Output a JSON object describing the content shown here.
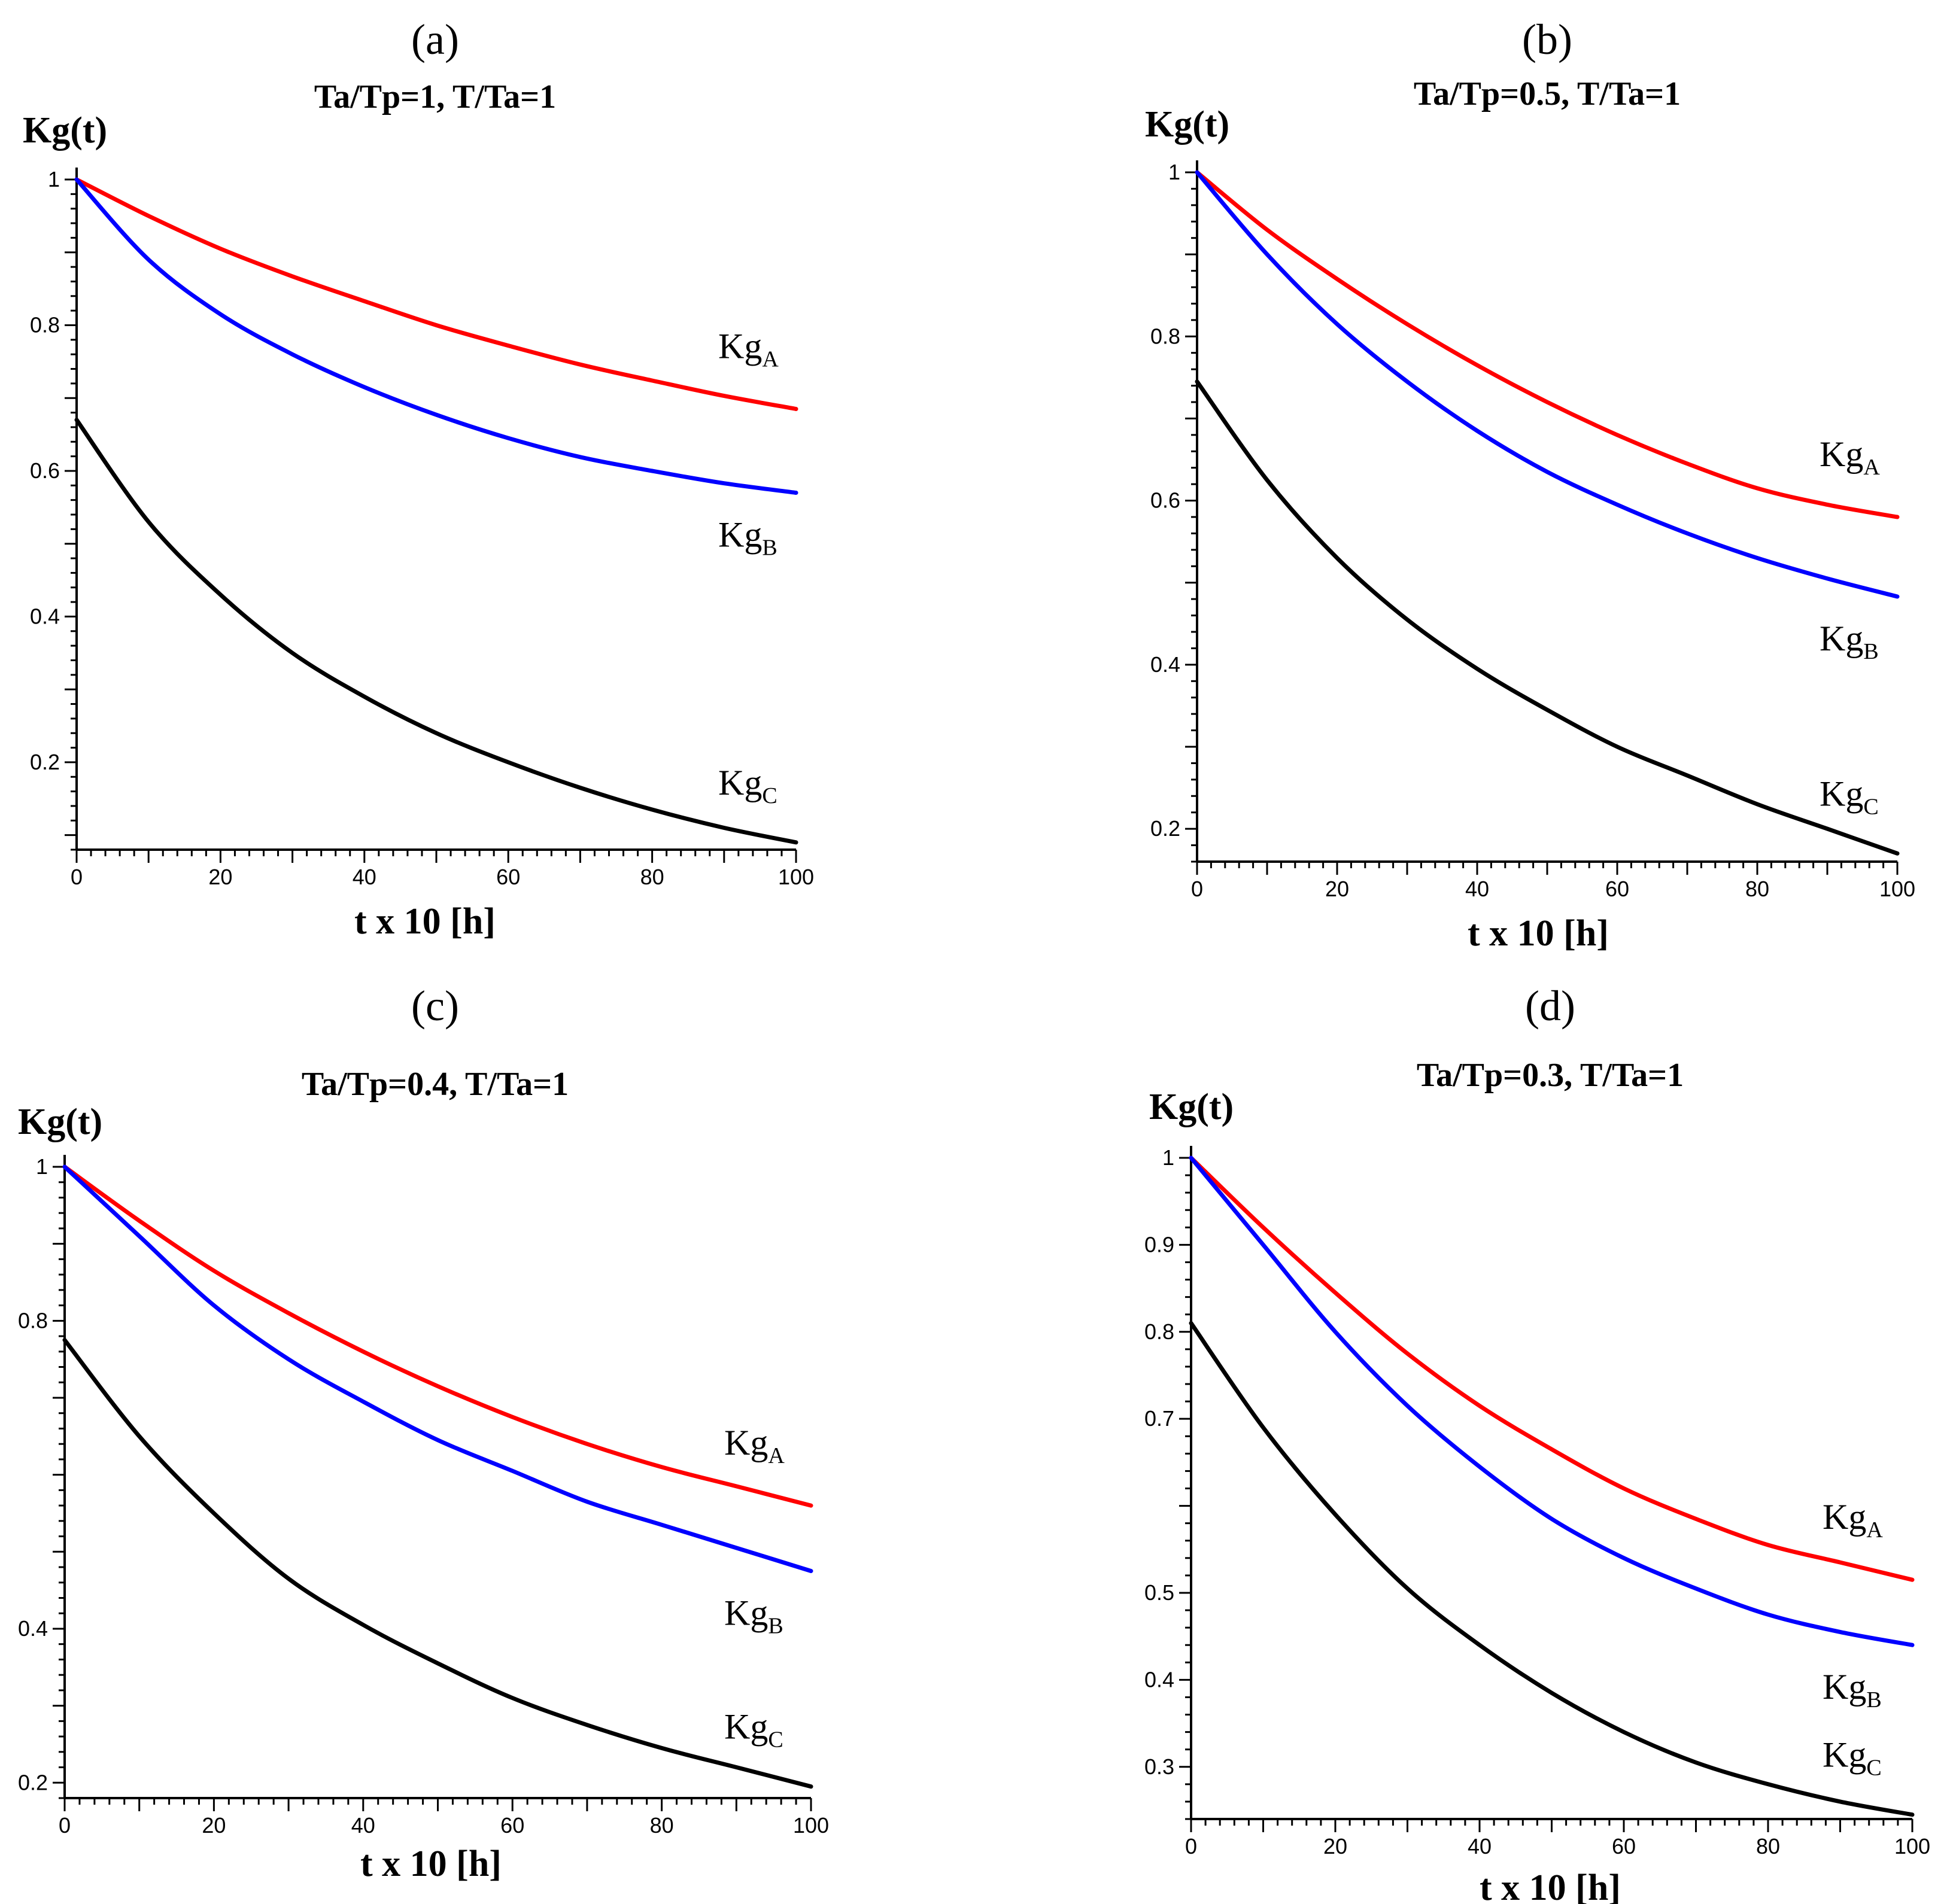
{
  "colors": {
    "KgA": "#ff0000",
    "KgB": "#0000ff",
    "KgC": "#000000"
  },
  "chart_data": [
    {
      "type": "line",
      "panel": "(a)",
      "title": "Ta/Tp=1,  T/Ta=1",
      "ylabel": "Kg(t)",
      "xlabel": "t x 10 [h]",
      "xlim": [
        0,
        100
      ],
      "ylim": [
        0.08,
        1.0
      ],
      "xticks": [
        0,
        20,
        40,
        60,
        80,
        100
      ],
      "xtick_labels": [
        "0",
        "20",
        "40",
        "60",
        "80",
        "100"
      ],
      "yticks": [
        0.2,
        0.4,
        0.6,
        0.8,
        1.0
      ],
      "ytick_labels": [
        "0.2",
        "0.4",
        "0.6",
        "0.8",
        "1"
      ],
      "x": [
        0,
        10,
        20,
        30,
        40,
        50,
        60,
        70,
        80,
        90,
        100
      ],
      "series": [
        {
          "name": "KgA",
          "label": "Kg",
          "sub": "A",
          "values": [
            1.0,
            0.95,
            0.905,
            0.867,
            0.833,
            0.8,
            0.772,
            0.746,
            0.724,
            0.703,
            0.685
          ]
        },
        {
          "name": "KgB",
          "label": "Kg",
          "sub": "B",
          "values": [
            1.0,
            0.89,
            0.815,
            0.76,
            0.715,
            0.677,
            0.645,
            0.619,
            0.6,
            0.583,
            0.57
          ]
        },
        {
          "name": "KgC",
          "label": "Kg",
          "sub": "C",
          "values": [
            0.67,
            0.53,
            0.43,
            0.35,
            0.29,
            0.24,
            0.2,
            0.165,
            0.135,
            0.11,
            0.09
          ]
        }
      ]
    },
    {
      "type": "line",
      "panel": "(b)",
      "title": "Ta/Tp=0.5,  T/Ta=1",
      "ylabel": "Kg(t)",
      "xlabel": "t x 10 [h]",
      "xlim": [
        0,
        100
      ],
      "ylim": [
        0.16,
        1.0
      ],
      "xticks": [
        0,
        20,
        40,
        60,
        80,
        100
      ],
      "xtick_labels": [
        "0",
        "20",
        "40",
        "60",
        "80",
        "100"
      ],
      "yticks": [
        0.2,
        0.4,
        0.6,
        0.8,
        1.0
      ],
      "ytick_labels": [
        "0.2",
        "0.4",
        "0.6",
        "0.8",
        "1"
      ],
      "x": [
        0,
        10,
        20,
        30,
        40,
        50,
        60,
        70,
        80,
        90,
        100
      ],
      "series": [
        {
          "name": "KgA",
          "label": "Kg",
          "sub": "A",
          "values": [
            1.0,
            0.93,
            0.87,
            0.815,
            0.765,
            0.72,
            0.68,
            0.645,
            0.615,
            0.595,
            0.58
          ]
        },
        {
          "name": "KgB",
          "label": "Kg",
          "sub": "B",
          "values": [
            1.0,
            0.9,
            0.815,
            0.745,
            0.685,
            0.635,
            0.595,
            0.56,
            0.53,
            0.505,
            0.483
          ]
        },
        {
          "name": "KgC",
          "label": "Kg",
          "sub": "C",
          "values": [
            0.745,
            0.625,
            0.53,
            0.455,
            0.395,
            0.345,
            0.3,
            0.265,
            0.23,
            0.2,
            0.17
          ]
        }
      ]
    },
    {
      "type": "line",
      "panel": "(c)",
      "title": "Ta/Tp=0.4,  T/Ta=1",
      "ylabel": "Kg(t)",
      "xlabel": "t x 10 [h]",
      "xlim": [
        0,
        100
      ],
      "ylim": [
        0.18,
        1.0
      ],
      "xticks": [
        0,
        20,
        40,
        60,
        80,
        100
      ],
      "xtick_labels": [
        "0",
        "20",
        "40",
        "60",
        "80",
        "100"
      ],
      "yticks": [
        0.2,
        0.4,
        0.8,
        1.0
      ],
      "ytick_labels": [
        "0.2",
        "0.4",
        "0.8",
        "1"
      ],
      "x": [
        0,
        10,
        20,
        30,
        40,
        50,
        60,
        70,
        80,
        90,
        100
      ],
      "series": [
        {
          "name": "KgA",
          "label": "Kg",
          "sub": "A",
          "values": [
            1.0,
            0.93,
            0.865,
            0.81,
            0.76,
            0.715,
            0.675,
            0.64,
            0.61,
            0.585,
            0.56
          ]
        },
        {
          "name": "KgB",
          "label": "Kg",
          "sub": "B",
          "values": [
            1.0,
            0.91,
            0.82,
            0.75,
            0.695,
            0.645,
            0.605,
            0.565,
            0.535,
            0.505,
            0.475
          ]
        },
        {
          "name": "KgC",
          "label": "Kg",
          "sub": "C",
          "values": [
            0.775,
            0.65,
            0.55,
            0.465,
            0.405,
            0.355,
            0.31,
            0.275,
            0.245,
            0.22,
            0.195
          ]
        }
      ]
    },
    {
      "type": "line",
      "panel": "(d)",
      "title": "Ta/Tp=0.3,  T/Ta=1",
      "ylabel": "Kg(t)",
      "xlabel": "t x 10 [h]",
      "xlim": [
        0,
        100
      ],
      "ylim": [
        0.24,
        1.0
      ],
      "xticks": [
        0,
        20,
        40,
        60,
        80,
        100
      ],
      "xtick_labels": [
        "0",
        "20",
        "40",
        "60",
        "80",
        "100"
      ],
      "yticks": [
        0.3,
        0.4,
        0.5,
        0.7,
        0.8,
        0.9,
        1.0
      ],
      "ytick_labels": [
        "0.3",
        "0.4",
        "0.5",
        "0.7",
        "0.8",
        "0.9",
        "1"
      ],
      "x": [
        0,
        10,
        20,
        30,
        40,
        50,
        60,
        70,
        80,
        90,
        100
      ],
      "series": [
        {
          "name": "KgA",
          "label": "Kg",
          "sub": "A",
          "values": [
            1.0,
            0.92,
            0.845,
            0.775,
            0.715,
            0.665,
            0.62,
            0.585,
            0.555,
            0.535,
            0.515
          ]
        },
        {
          "name": "KgB",
          "label": "Kg",
          "sub": "B",
          "values": [
            1.0,
            0.9,
            0.8,
            0.715,
            0.645,
            0.585,
            0.54,
            0.505,
            0.475,
            0.455,
            0.44
          ]
        },
        {
          "name": "KgC",
          "label": "Kg",
          "sub": "C",
          "values": [
            0.81,
            0.69,
            0.59,
            0.505,
            0.44,
            0.385,
            0.34,
            0.305,
            0.28,
            0.26,
            0.245
          ]
        }
      ]
    }
  ]
}
